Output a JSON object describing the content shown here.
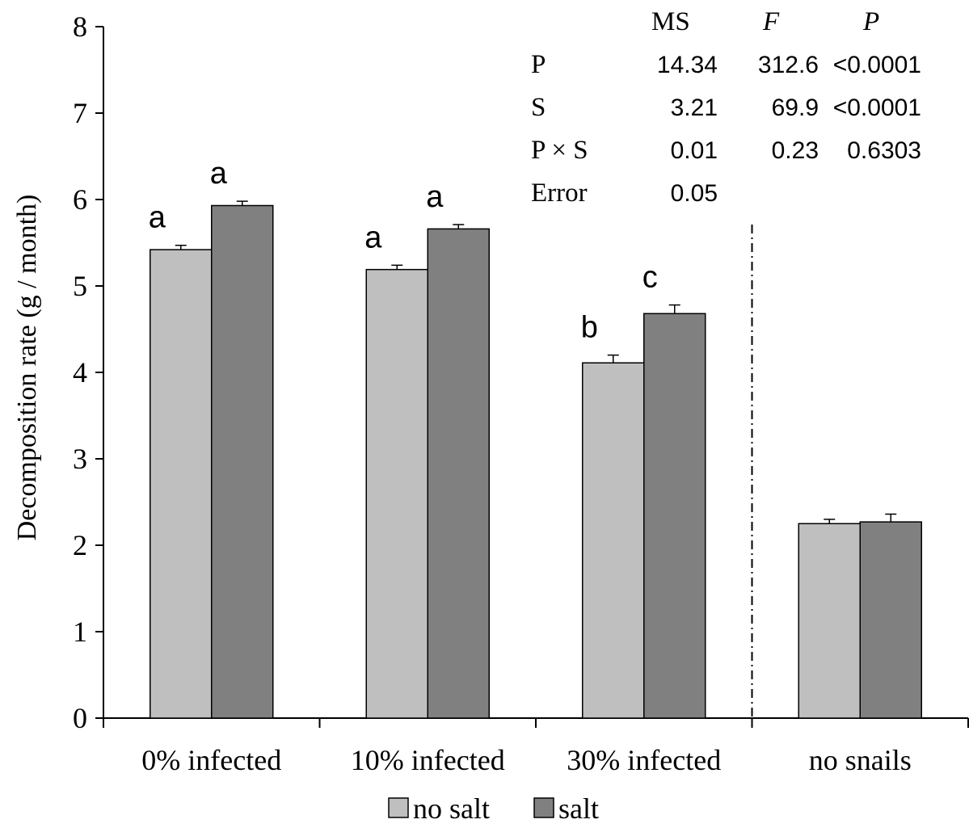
{
  "chart_data": {
    "type": "bar",
    "ylabel": "Decomposition rate (g / month)",
    "ylim": [
      0,
      8
    ],
    "yticks": [
      "0",
      "1",
      "2",
      "3",
      "4",
      "5",
      "6",
      "7",
      "8"
    ],
    "categories": [
      "0% infected",
      "10% infected",
      "30% infected",
      "no snails"
    ],
    "series": [
      {
        "name": "no salt",
        "color": "#bfbfbf",
        "values": [
          5.42,
          5.19,
          4.11,
          2.25
        ],
        "errors": [
          0.05,
          0.05,
          0.09,
          0.05
        ],
        "letters": [
          "a",
          "a",
          "b",
          ""
        ]
      },
      {
        "name": "salt",
        "color": "#808080",
        "values": [
          5.93,
          5.66,
          4.68,
          2.27
        ],
        "errors": [
          0.05,
          0.05,
          0.1,
          0.09
        ],
        "letters": [
          "a",
          "a",
          "c",
          ""
        ]
      }
    ],
    "legend": {
      "position": "bottom"
    },
    "grid": false,
    "separator_after_category": 2,
    "anova_table": {
      "headers": [
        "",
        "MS",
        "F",
        "P"
      ],
      "rows": [
        [
          "P",
          "14.34",
          "312.6",
          "<0.0001"
        ],
        [
          "S",
          "3.21",
          "69.9",
          "<0.0001"
        ],
        [
          "P × S",
          "0.01",
          "0.23",
          "0.6303"
        ],
        [
          "Error",
          "0.05",
          "",
          ""
        ]
      ]
    }
  }
}
